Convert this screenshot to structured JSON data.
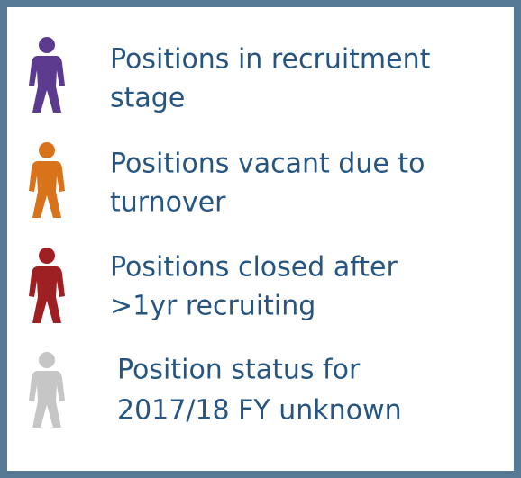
{
  "legend": {
    "items": [
      {
        "lines": [
          "Positions in recruitment",
          "stage"
        ],
        "color": "#5c3b8e"
      },
      {
        "lines": [
          "Positions vacant due to",
          "turnover"
        ],
        "color": "#d8731c"
      },
      {
        "lines": [
          "Positions closed after",
          ">1yr recruiting"
        ],
        "color": "#9e2022"
      },
      {
        "lines": [
          "Position status for",
          "2017/18 FY unknown"
        ],
        "color": "#c6c6c6"
      }
    ]
  }
}
